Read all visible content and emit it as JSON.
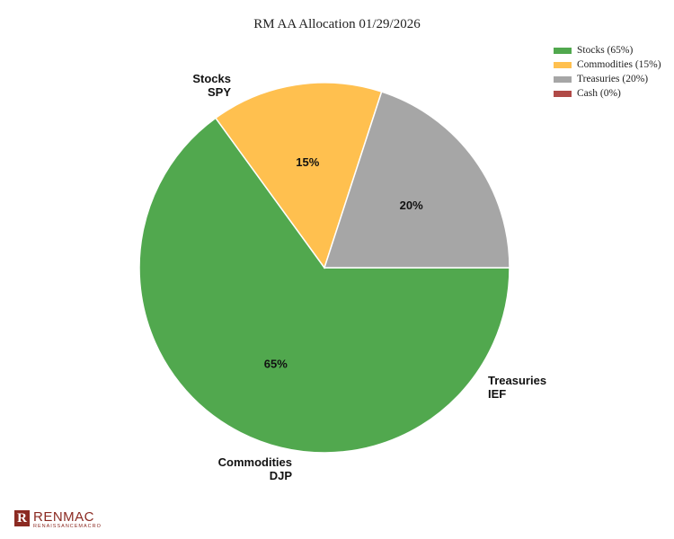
{
  "chart_data": {
    "type": "pie",
    "title": "RM AA Allocation 01/29/2026",
    "slices": [
      {
        "legend": "Stocks (65%)",
        "name": "Stocks",
        "ticker": "SPY",
        "value": 65,
        "pct_label": "65%",
        "color": "#51a84e",
        "start_angle": 90
      },
      {
        "legend": "Commodities (15%)",
        "name": "Commodities",
        "ticker": "DJP",
        "value": 15,
        "pct_label": "15%",
        "color": "#ffc04f"
      },
      {
        "legend": "Treasuries (20%)",
        "name": "Treasuries",
        "ticker": "IEF",
        "value": 20,
        "pct_label": "20%",
        "color": "#a6a6a6"
      },
      {
        "legend": "Cash (0%)",
        "name": "Cash",
        "ticker": "",
        "value": 0,
        "pct_label": "",
        "color": "#b04a47"
      }
    ],
    "legend_position": "top-right"
  },
  "logo": {
    "mark": "R",
    "name": "RENMAC",
    "sub": "RENAISSANCEMACRO"
  }
}
